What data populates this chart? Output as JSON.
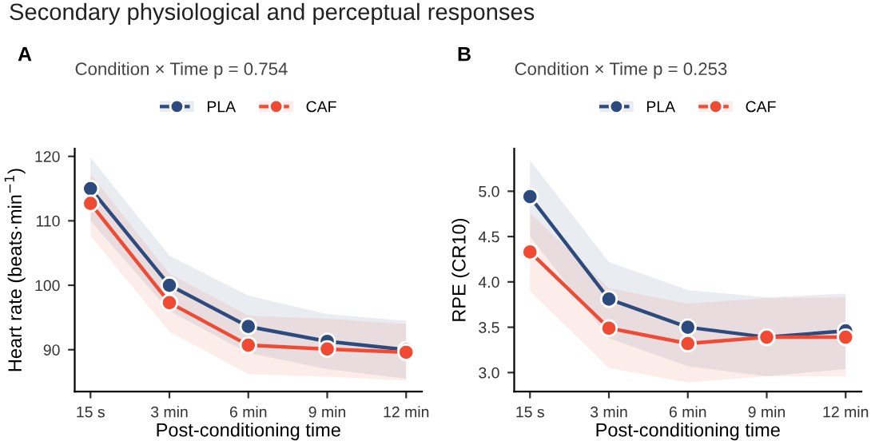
{
  "chart_data": [
    {
      "type": "line",
      "title": "A",
      "subtitle": "Condition × Time p = 0.754",
      "xlabel": "Post-conditioning time",
      "ylabel": "Heart rate (beats·min$^{−1}$)",
      "annotations": [
        "Secondary physiological and perceptual responses"
      ],
      "categories": [
        "15 s",
        "3 min",
        "6 min",
        "9 min",
        "12 min"
      ],
      "ylim": [
        83.5,
        121.2
      ],
      "yticks": [
        90,
        100,
        110,
        120
      ],
      "grid": false,
      "legend": "top",
      "marker": "circle",
      "line_style": "solid",
      "series": [
        {
          "name": "PLA",
          "color": "#2c4a7e",
          "values": [
            115.0,
            100.0,
            93.6,
            91.3,
            90.0
          ],
          "lower": [
            110.0,
            96.0,
            89.5,
            87.0,
            85.5
          ],
          "upper": [
            119.8,
            104.6,
            98.4,
            95.5,
            94.5
          ]
        },
        {
          "name": "CAF",
          "color": "#f04a33",
          "values": [
            112.7,
            97.3,
            90.7,
            90.1,
            89.6
          ],
          "lower": [
            107.7,
            92.8,
            86.2,
            85.8,
            85.2
          ],
          "upper": [
            117.3,
            101.8,
            95.3,
            94.8,
            94.0
          ]
        }
      ]
    },
    {
      "type": "line",
      "title": "B",
      "subtitle": "Condition × Time p = 0.253",
      "xlabel": "Post-conditioning time",
      "ylabel": "RPE (CR10)",
      "categories": [
        "15 s",
        "3 min",
        "6 min",
        "9 min",
        "12 min"
      ],
      "ylim": [
        2.79,
        5.47
      ],
      "yticks": [
        {
          "value": 3.0,
          "label": "3.0"
        },
        {
          "value": 3.5,
          "label": "3.5"
        },
        {
          "value": 4.0,
          "label": "4.0"
        },
        {
          "value": 4.5,
          "label": "4.5"
        },
        {
          "value": 5.0,
          "label": "5.0"
        }
      ],
      "grid": false,
      "legend": "top",
      "marker": "circle",
      "line_style": "solid",
      "series": [
        {
          "name": "PLA",
          "color": "#2c4a7e",
          "values": [
            4.94,
            3.81,
            3.5,
            3.39,
            3.46
          ],
          "lower": [
            4.5,
            3.38,
            3.07,
            2.96,
            3.04
          ],
          "upper": [
            5.34,
            4.22,
            3.91,
            3.83,
            3.87
          ]
        },
        {
          "name": "CAF",
          "color": "#f04a33",
          "values": [
            4.33,
            3.49,
            3.32,
            3.39,
            3.39
          ],
          "lower": [
            3.9,
            3.05,
            2.89,
            2.96,
            2.96
          ],
          "upper": [
            4.76,
            3.93,
            3.76,
            3.82,
            3.83
          ]
        }
      ]
    }
  ]
}
